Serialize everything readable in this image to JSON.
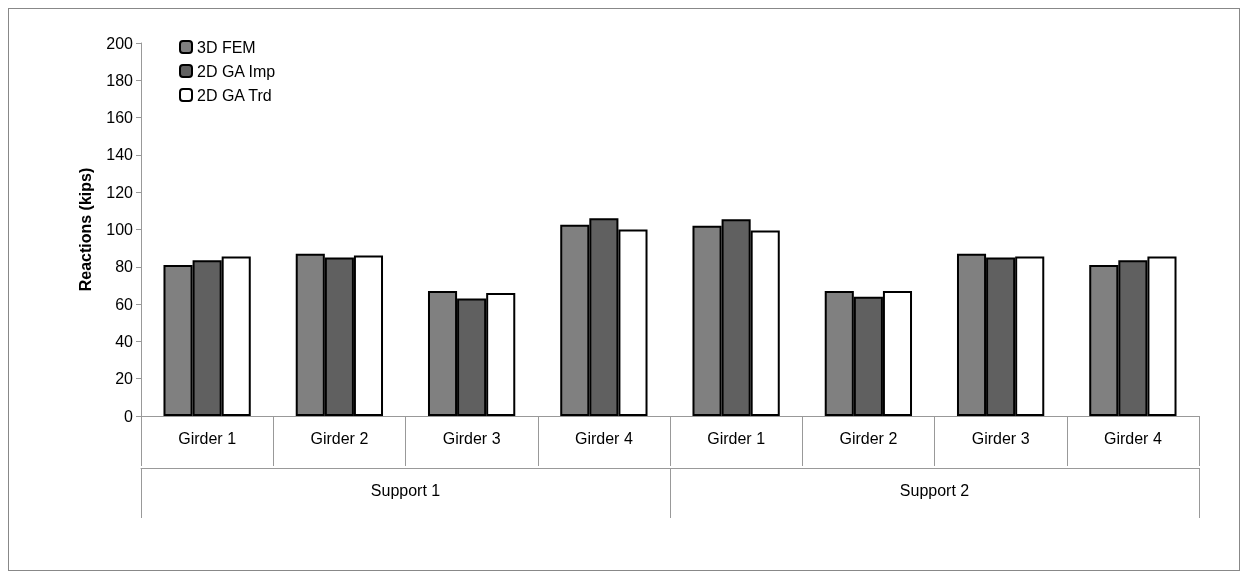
{
  "chart_data": {
    "type": "bar",
    "ylabel": "Reactions (kips)",
    "categories": [
      "Girder 1",
      "Girder 2",
      "Girder 3",
      "Girder 4",
      "Girder 1",
      "Girder 2",
      "Girder 3",
      "Girder 4"
    ],
    "annotations": [
      "Support 1",
      "Support 2"
    ],
    "series": [
      {
        "name": "3D FEM",
        "color": "#808080",
        "values": [
          81,
          87,
          67,
          102.5,
          102,
          67,
          87,
          81
        ]
      },
      {
        "name": "2D GA Imp",
        "color": "#606060",
        "values": [
          83.5,
          85,
          63,
          106,
          105.5,
          64,
          85,
          83.5
        ]
      },
      {
        "name": "2D GA Trd",
        "color": "#ffffff",
        "values": [
          85.5,
          86,
          66,
          100,
          99.5,
          67,
          85.5,
          85.5
        ]
      }
    ],
    "ylim": [
      0,
      200
    ],
    "yticks": [
      0,
      20,
      40,
      60,
      80,
      100,
      120,
      140,
      160,
      180,
      200
    ],
    "grid": false,
    "legend": "top left"
  }
}
